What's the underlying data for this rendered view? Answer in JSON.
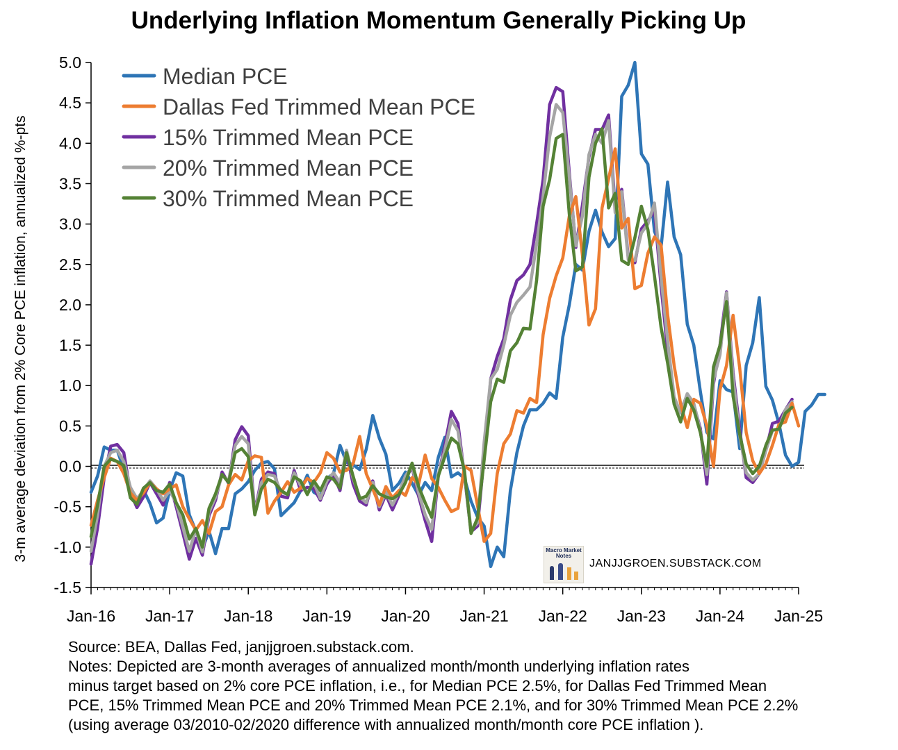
{
  "title": "Underlying Inflation Momentum Generally Picking Up",
  "notes": {
    "source": "Source: BEA, Dallas Fed, janjjgroen.substack.com.",
    "lines": [
      "Notes: Depicted are 3-month averages of annualized month/month underlying inflation rates",
      "minus target based on 2% core PCE inflation, i.e., for Median PCE 2.5%, for Dallas Fed Trimmed Mean",
      "PCE, 15% Trimmed Mean PCE and 20% Trimmed Mean PCE 2.1%, and for 30% Trimmed Mean PCE 2.2%",
      "(using average 03/2010-02/2020 difference with annualized month/month core PCE inflation )."
    ]
  },
  "watermark": {
    "logo_text": "Macro Market Notes",
    "site": "JANJJGROEN.SUBSTACK.COM"
  },
  "chart_data": {
    "type": "line",
    "title": "Underlying Inflation Momentum Generally Picking Up",
    "xlabel": "",
    "ylabel": "3-m average deviation from 2% Core PCE inflation, annualized %-pts",
    "ylim": [
      -1.5,
      5.0
    ],
    "yticks": [
      "5.0",
      "4.5",
      "4.0",
      "3.5",
      "3.0",
      "2.5",
      "2.0",
      "1.5",
      "1.0",
      "0.5",
      "0.0",
      "-0.5",
      "-1.0",
      "-1.5"
    ],
    "ytick_values": [
      5.0,
      4.5,
      4.0,
      3.5,
      3.0,
      2.5,
      2.0,
      1.5,
      1.0,
      0.5,
      0.0,
      -0.5,
      -1.0,
      -1.5
    ],
    "xticks": [
      "Jan-16",
      "Jan-17",
      "Jan-18",
      "Jan-19",
      "Jan-20",
      "Jan-21",
      "Jan-22",
      "Jan-23",
      "Jan-24",
      "Jan-25"
    ],
    "x_start": "Jan-16",
    "x_end": "Jan-25",
    "x_frequency": "monthly",
    "grid": false,
    "legend_position": "top-left",
    "reference_line": 0.0,
    "series": [
      {
        "name": "Median PCE",
        "color": "#2e75b6",
        "values": [
          -0.32,
          -0.12,
          0.24,
          0.2,
          0.2,
          -0.04,
          -0.33,
          -0.46,
          -0.29,
          -0.46,
          -0.7,
          -0.64,
          -0.3,
          -0.08,
          -0.12,
          -0.6,
          -0.8,
          -1.02,
          -0.8,
          -1.08,
          -0.77,
          -0.77,
          -0.34,
          -0.28,
          -0.19,
          -0.05,
          0.04,
          0.06,
          -0.03,
          -0.61,
          -0.53,
          -0.45,
          -0.3,
          -0.11,
          -0.32,
          -0.37,
          -0.15,
          -0.09,
          0.26,
          0.05,
          0.02,
          -0.04,
          0.21,
          0.63,
          0.35,
          0.15,
          -0.3,
          -0.21,
          -0.07,
          -0.21,
          -0.36,
          -0.2,
          -0.3,
          0.11,
          0.36,
          -0.13,
          -0.08,
          -0.15,
          -0.43,
          -0.63,
          -0.74,
          -1.24,
          -1.0,
          -1.12,
          -0.3,
          0.17,
          0.5,
          0.7,
          0.7,
          0.78,
          0.91,
          0.84,
          1.6,
          2.0,
          2.5,
          2.43,
          2.91,
          3.17,
          2.9,
          2.72,
          2.82,
          4.58,
          4.72,
          5.0,
          3.87,
          3.74,
          2.91,
          2.71,
          3.52,
          2.84,
          2.62,
          1.76,
          1.5,
          0.93,
          0.42,
          0.34,
          1.06,
          0.95,
          0.92,
          0.22,
          1.25,
          1.53,
          2.09,
          0.99,
          0.82,
          0.53,
          0.14,
          0.0,
          0.05,
          0.68,
          0.76,
          0.89,
          0.89
        ]
      },
      {
        "name": "Dallas Fed Trimmed Mean PCE",
        "color": "#ed7d31",
        "values": [
          -0.73,
          -0.42,
          -0.14,
          0.1,
          0.06,
          -0.09,
          -0.33,
          -0.42,
          -0.33,
          -0.2,
          -0.28,
          -0.34,
          -0.28,
          -0.23,
          -0.5,
          -0.65,
          -0.79,
          -0.67,
          -0.83,
          -0.56,
          -0.5,
          -0.23,
          -0.1,
          -0.17,
          0.07,
          0.13,
          0.11,
          -0.58,
          -0.43,
          -0.32,
          -0.19,
          -0.32,
          -0.27,
          -0.15,
          -0.2,
          -0.08,
          0.17,
          0.1,
          -0.07,
          -0.05,
          0.03,
          0.37,
          -0.09,
          -0.28,
          -0.48,
          -0.25,
          -0.39,
          -0.3,
          -0.36,
          -0.14,
          -0.22,
          0.14,
          -0.15,
          -0.26,
          -0.42,
          -0.56,
          -0.52,
          0.0,
          -0.05,
          -0.49,
          -0.93,
          -0.83,
          -0.09,
          0.28,
          0.4,
          0.69,
          0.66,
          0.84,
          0.79,
          1.63,
          2.08,
          2.36,
          2.58,
          3.1,
          3.34,
          2.62,
          1.75,
          1.95,
          3.2,
          3.56,
          3.93,
          2.95,
          3.07,
          2.2,
          2.24,
          2.64,
          2.84,
          2.74,
          1.88,
          1.25,
          0.77,
          0.48,
          0.83,
          0.78,
          0.5,
          0.0,
          0.95,
          1.25,
          1.87,
          1.22,
          0.42,
          0.07,
          -0.09,
          0.03,
          0.26,
          0.52,
          0.55,
          0.78,
          0.5
        ]
      },
      {
        "name": "15% Trimmed Mean PCE",
        "color": "#7030a0",
        "values": [
          -1.21,
          -0.76,
          -0.14,
          0.25,
          0.27,
          0.17,
          -0.32,
          -0.51,
          -0.38,
          -0.2,
          -0.34,
          -0.48,
          -0.2,
          -0.5,
          -0.82,
          -1.15,
          -0.89,
          -1.1,
          -0.61,
          -0.42,
          -0.07,
          -0.21,
          0.33,
          0.49,
          0.38,
          -0.57,
          -0.16,
          -0.07,
          -0.09,
          -0.37,
          -0.39,
          -0.05,
          -0.3,
          -0.26,
          -0.27,
          -0.42,
          -0.22,
          -0.1,
          -0.3,
          0.17,
          -0.22,
          -0.43,
          -0.48,
          -0.18,
          -0.54,
          -0.35,
          -0.54,
          -0.36,
          -0.15,
          -0.01,
          -0.37,
          -0.67,
          -0.93,
          -0.12,
          0.26,
          0.68,
          0.53,
          -0.12,
          -0.81,
          -0.74,
          0.13,
          1.08,
          1.36,
          1.58,
          2.06,
          2.3,
          2.37,
          2.5,
          3.0,
          3.55,
          4.48,
          4.69,
          4.64,
          3.63,
          2.71,
          3.23,
          3.83,
          4.17,
          4.17,
          4.35,
          3.2,
          3.43,
          2.59,
          2.52,
          2.94,
          3.04,
          3.17,
          2.23,
          1.44,
          0.8,
          0.68,
          0.89,
          0.76,
          0.47,
          -0.22,
          1.02,
          1.5,
          2.16,
          1.16,
          0.46,
          -0.14,
          -0.2,
          -0.09,
          0.2,
          0.53,
          0.56,
          0.7,
          0.83
        ]
      },
      {
        "name": "20% Trimmed Mean PCE",
        "color": "#a5a5a5",
        "values": [
          -1.05,
          -0.6,
          0.0,
          0.17,
          0.2,
          0.06,
          -0.26,
          -0.4,
          -0.3,
          -0.18,
          -0.28,
          -0.42,
          -0.3,
          -0.45,
          -0.75,
          -1.05,
          -0.78,
          -1.06,
          -0.57,
          -0.38,
          -0.11,
          -0.18,
          0.26,
          0.37,
          0.28,
          -0.58,
          -0.2,
          -0.1,
          -0.12,
          -0.32,
          -0.35,
          -0.08,
          -0.24,
          -0.33,
          -0.2,
          -0.4,
          -0.18,
          -0.08,
          -0.2,
          0.2,
          -0.15,
          -0.38,
          -0.45,
          -0.2,
          -0.5,
          -0.32,
          -0.48,
          -0.32,
          -0.12,
          0.0,
          -0.33,
          -0.6,
          -0.78,
          -0.1,
          0.2,
          0.58,
          0.44,
          -0.1,
          -0.78,
          -0.7,
          0.3,
          1.08,
          1.2,
          1.5,
          1.87,
          2.03,
          2.12,
          2.22,
          2.75,
          3.34,
          4.08,
          4.48,
          4.38,
          3.58,
          2.73,
          3.1,
          3.86,
          4.11,
          4.0,
          4.28,
          3.14,
          3.4,
          2.56,
          2.55,
          2.89,
          3.0,
          3.26,
          2.34,
          1.56,
          0.86,
          0.66,
          0.9,
          0.78,
          0.44,
          -0.1,
          1.07,
          1.38,
          2.15,
          1.1,
          0.38,
          -0.08,
          -0.17,
          -0.09,
          0.2,
          0.44,
          0.47,
          0.7,
          0.8
        ]
      },
      {
        "name": "30% Trimmed Mean PCE",
        "color": "#548235",
        "values": [
          -0.87,
          -0.48,
          0.0,
          0.09,
          0.06,
          0.01,
          -0.39,
          -0.47,
          -0.27,
          -0.2,
          -0.3,
          -0.32,
          -0.22,
          -0.45,
          -0.6,
          -0.9,
          -0.77,
          -1.0,
          -0.52,
          -0.34,
          -0.1,
          -0.2,
          0.17,
          0.22,
          0.12,
          -0.6,
          -0.28,
          -0.16,
          -0.2,
          -0.3,
          -0.35,
          -0.13,
          -0.18,
          -0.35,
          -0.18,
          -0.3,
          -0.13,
          -0.16,
          -0.27,
          0.17,
          -0.12,
          -0.4,
          -0.37,
          -0.24,
          -0.34,
          -0.38,
          -0.4,
          -0.35,
          -0.2,
          0.04,
          -0.25,
          -0.45,
          -0.63,
          -0.12,
          0.12,
          0.35,
          0.28,
          -0.06,
          -0.83,
          -0.64,
          0.08,
          0.8,
          1.08,
          1.04,
          1.43,
          1.53,
          1.71,
          1.7,
          2.3,
          3.22,
          3.55,
          4.06,
          4.11,
          3.12,
          2.42,
          2.47,
          3.58,
          4.0,
          4.18,
          3.2,
          3.38,
          2.55,
          2.5,
          2.83,
          3.22,
          2.93,
          2.36,
          1.72,
          1.28,
          0.77,
          0.55,
          0.84,
          0.7,
          0.42,
          0.0,
          1.23,
          1.5,
          2.04,
          0.87,
          0.4,
          0.03,
          -0.09,
          0.0,
          0.26,
          0.45,
          0.46,
          0.66,
          0.73
        ]
      }
    ]
  }
}
